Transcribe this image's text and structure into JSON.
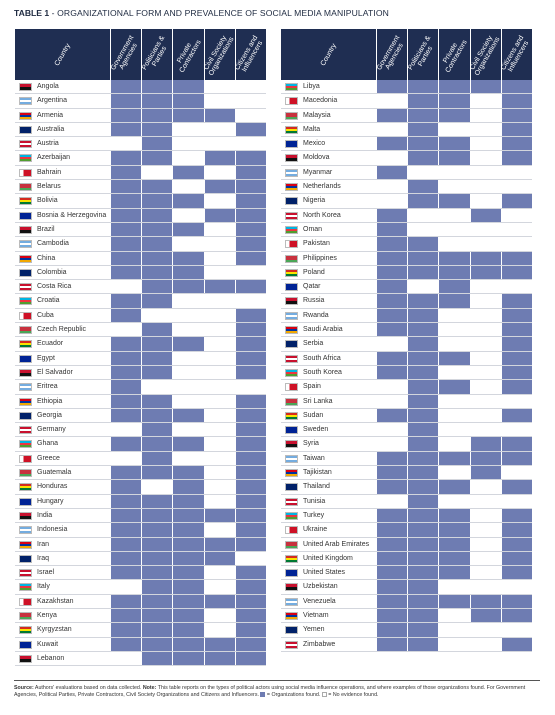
{
  "title": {
    "label": "TABLE 1",
    "separator": " - ",
    "text": "ORGANIZATIONAL FORM AND PREVALENCE OF SOCIAL MEDIA MANIPULATION"
  },
  "columns": {
    "country": "Country",
    "actors": [
      [
        "Government",
        "Agencies"
      ],
      [
        "Politicians &",
        "Parties"
      ],
      [
        "Private",
        "Contractors"
      ],
      [
        "Civil Society",
        "Organizations"
      ],
      [
        "Citizens and",
        "Influencers"
      ]
    ]
  },
  "colors": {
    "found": "#6e7cb2",
    "header": "#1f2e52"
  },
  "left_rows": [
    {
      "country": "Angola",
      "flags": [
        1,
        1,
        1,
        0,
        0
      ],
      "flag_icon": "angola-flag-icon"
    },
    {
      "country": "Argentina",
      "flags": [
        1,
        1,
        1,
        0,
        0
      ],
      "flag_icon": "argentina-flag-icon"
    },
    {
      "country": "Armenia",
      "flags": [
        1,
        1,
        1,
        1,
        0
      ],
      "flag_icon": "armenia-flag-icon"
    },
    {
      "country": "Australia",
      "flags": [
        1,
        1,
        0,
        0,
        1
      ],
      "flag_icon": "australia-flag-icon"
    },
    {
      "country": "Austria",
      "flags": [
        0,
        1,
        0,
        0,
        0
      ],
      "flag_icon": "austria-flag-icon"
    },
    {
      "country": "Azerbaijan",
      "flags": [
        1,
        1,
        0,
        1,
        1
      ],
      "flag_icon": "azerbaijan-flag-icon"
    },
    {
      "country": "Bahrain",
      "flags": [
        1,
        0,
        1,
        0,
        1
      ],
      "flag_icon": "bahrain-flag-icon"
    },
    {
      "country": "Belarus",
      "flags": [
        1,
        1,
        0,
        1,
        1
      ],
      "flag_icon": "belarus-flag-icon"
    },
    {
      "country": "Bolivia",
      "flags": [
        1,
        1,
        1,
        0,
        1
      ],
      "flag_icon": "bolivia-flag-icon"
    },
    {
      "country": "Bosnia & Herzegovina",
      "flags": [
        1,
        1,
        0,
        1,
        1
      ],
      "flag_icon": "bosnia-flag-icon"
    },
    {
      "country": "Brazil",
      "flags": [
        1,
        1,
        1,
        0,
        1
      ],
      "flag_icon": "brazil-flag-icon"
    },
    {
      "country": "Cambodia",
      "flags": [
        1,
        1,
        0,
        0,
        1
      ],
      "flag_icon": "cambodia-flag-icon"
    },
    {
      "country": "China",
      "flags": [
        1,
        1,
        1,
        0,
        1
      ],
      "flag_icon": "china-flag-icon"
    },
    {
      "country": "Colombia",
      "flags": [
        1,
        1,
        1,
        0,
        0
      ],
      "flag_icon": "colombia-flag-icon"
    },
    {
      "country": "Costa Rica",
      "flags": [
        0,
        1,
        1,
        1,
        1
      ],
      "flag_icon": "costa-rica-flag-icon"
    },
    {
      "country": "Croatia",
      "flags": [
        1,
        1,
        0,
        0,
        0
      ],
      "flag_icon": "croatia-flag-icon"
    },
    {
      "country": "Cuba",
      "flags": [
        1,
        0,
        0,
        0,
        1
      ],
      "flag_icon": "cuba-flag-icon"
    },
    {
      "country": "Czech Republic",
      "flags": [
        0,
        1,
        0,
        0,
        1
      ],
      "flag_icon": "czech-flag-icon"
    },
    {
      "country": "Ecuador",
      "flags": [
        1,
        1,
        1,
        0,
        1
      ],
      "flag_icon": "ecuador-flag-icon"
    },
    {
      "country": "Egypt",
      "flags": [
        1,
        1,
        0,
        0,
        1
      ],
      "flag_icon": "egypt-flag-icon"
    },
    {
      "country": "El Salvador",
      "flags": [
        1,
        1,
        0,
        0,
        1
      ],
      "flag_icon": "el-salvador-flag-icon"
    },
    {
      "country": "Eritrea",
      "flags": [
        1,
        0,
        0,
        0,
        0
      ],
      "flag_icon": "eritrea-flag-icon"
    },
    {
      "country": "Ethiopia",
      "flags": [
        1,
        1,
        0,
        0,
        1
      ],
      "flag_icon": "ethiopia-flag-icon"
    },
    {
      "country": "Georgia",
      "flags": [
        1,
        1,
        1,
        0,
        1
      ],
      "flag_icon": "georgia-flag-icon"
    },
    {
      "country": "Germany",
      "flags": [
        0,
        1,
        0,
        0,
        1
      ],
      "flag_icon": "germany-flag-icon"
    },
    {
      "country": "Ghana",
      "flags": [
        1,
        1,
        1,
        0,
        1
      ],
      "flag_icon": "ghana-flag-icon"
    },
    {
      "country": "Greece",
      "flags": [
        0,
        1,
        0,
        0,
        1
      ],
      "flag_icon": "greece-flag-icon"
    },
    {
      "country": "Guatemala",
      "flags": [
        1,
        1,
        1,
        0,
        1
      ],
      "flag_icon": "guatemala-flag-icon"
    },
    {
      "country": "Honduras",
      "flags": [
        1,
        0,
        1,
        0,
        1
      ],
      "flag_icon": "honduras-flag-icon"
    },
    {
      "country": "Hungary",
      "flags": [
        1,
        1,
        1,
        0,
        1
      ],
      "flag_icon": "hungary-flag-icon"
    },
    {
      "country": "India",
      "flags": [
        1,
        1,
        1,
        1,
        1
      ],
      "flag_icon": "india-flag-icon"
    },
    {
      "country": "Indonesia",
      "flags": [
        1,
        1,
        1,
        0,
        1
      ],
      "flag_icon": "indonesia-flag-icon"
    },
    {
      "country": "Iran",
      "flags": [
        1,
        1,
        1,
        1,
        1
      ],
      "flag_icon": "iran-flag-icon"
    },
    {
      "country": "Iraq",
      "flags": [
        1,
        1,
        1,
        1,
        0
      ],
      "flag_icon": "iraq-flag-icon"
    },
    {
      "country": "Israel",
      "flags": [
        1,
        1,
        1,
        0,
        1
      ],
      "flag_icon": "israel-flag-icon"
    },
    {
      "country": "Italy",
      "flags": [
        0,
        1,
        1,
        0,
        1
      ],
      "flag_icon": "italy-flag-icon"
    },
    {
      "country": "Kazakhstan",
      "flags": [
        1,
        1,
        1,
        1,
        1
      ],
      "flag_icon": "kazakhstan-flag-icon"
    },
    {
      "country": "Kenya",
      "flags": [
        1,
        1,
        1,
        0,
        1
      ],
      "flag_icon": "kenya-flag-icon"
    },
    {
      "country": "Kyrgyzstan",
      "flags": [
        1,
        1,
        1,
        0,
        1
      ],
      "flag_icon": "kyrgyzstan-flag-icon"
    },
    {
      "country": "Kuwait",
      "flags": [
        1,
        1,
        1,
        1,
        1
      ],
      "flag_icon": "kuwait-flag-icon"
    },
    {
      "country": "Lebanon",
      "flags": [
        0,
        1,
        1,
        1,
        1
      ],
      "flag_icon": "lebanon-flag-icon"
    }
  ],
  "right_rows": [
    {
      "country": "Libya",
      "flags": [
        1,
        1,
        1,
        1,
        1
      ],
      "flag_icon": "libya-flag-icon"
    },
    {
      "country": "Macedonia",
      "flags": [
        0,
        1,
        1,
        0,
        1
      ],
      "flag_icon": "macedonia-flag-icon"
    },
    {
      "country": "Malaysia",
      "flags": [
        1,
        1,
        1,
        0,
        1
      ],
      "flag_icon": "malaysia-flag-icon"
    },
    {
      "country": "Malta",
      "flags": [
        0,
        1,
        0,
        0,
        1
      ],
      "flag_icon": "malta-flag-icon"
    },
    {
      "country": "Mexico",
      "flags": [
        1,
        1,
        1,
        0,
        1
      ],
      "flag_icon": "mexico-flag-icon"
    },
    {
      "country": "Moldova",
      "flags": [
        0,
        1,
        1,
        0,
        1
      ],
      "flag_icon": "moldova-flag-icon"
    },
    {
      "country": "Myanmar",
      "flags": [
        1,
        0,
        0,
        0,
        0
      ],
      "flag_icon": "myanmar-flag-icon"
    },
    {
      "country": "Netherlands",
      "flags": [
        0,
        1,
        0,
        0,
        0
      ],
      "flag_icon": "netherlands-flag-icon"
    },
    {
      "country": "Nigeria",
      "flags": [
        0,
        1,
        1,
        0,
        1
      ],
      "flag_icon": "nigeria-flag-icon"
    },
    {
      "country": "North Korea",
      "flags": [
        1,
        0,
        0,
        1,
        0
      ],
      "flag_icon": "north-korea-flag-icon"
    },
    {
      "country": "Oman",
      "flags": [
        1,
        0,
        0,
        0,
        0
      ],
      "flag_icon": "oman-flag-icon"
    },
    {
      "country": "Pakistan",
      "flags": [
        1,
        1,
        0,
        0,
        0
      ],
      "flag_icon": "pakistan-flag-icon"
    },
    {
      "country": "Philippines",
      "flags": [
        1,
        1,
        1,
        1,
        1
      ],
      "flag_icon": "philippines-flag-icon"
    },
    {
      "country": "Poland",
      "flags": [
        1,
        1,
        1,
        1,
        1
      ],
      "flag_icon": "poland-flag-icon"
    },
    {
      "country": "Qatar",
      "flags": [
        1,
        0,
        1,
        0,
        0
      ],
      "flag_icon": "qatar-flag-icon"
    },
    {
      "country": "Russia",
      "flags": [
        1,
        1,
        1,
        0,
        1
      ],
      "flag_icon": "russia-flag-icon"
    },
    {
      "country": "Rwanda",
      "flags": [
        1,
        1,
        0,
        0,
        1
      ],
      "flag_icon": "rwanda-flag-icon"
    },
    {
      "country": "Saudi Arabia",
      "flags": [
        1,
        1,
        0,
        0,
        1
      ],
      "flag_icon": "saudi-arabia-flag-icon"
    },
    {
      "country": "Serbia",
      "flags": [
        0,
        1,
        0,
        0,
        1
      ],
      "flag_icon": "serbia-flag-icon"
    },
    {
      "country": "South Africa",
      "flags": [
        1,
        1,
        1,
        0,
        1
      ],
      "flag_icon": "south-africa-flag-icon"
    },
    {
      "country": "South Korea",
      "flags": [
        1,
        1,
        0,
        0,
        1
      ],
      "flag_icon": "south-korea-flag-icon"
    },
    {
      "country": "Spain",
      "flags": [
        0,
        1,
        1,
        0,
        1
      ],
      "flag_icon": "spain-flag-icon"
    },
    {
      "country": "Sri Lanka",
      "flags": [
        0,
        1,
        0,
        0,
        0
      ],
      "flag_icon": "sri-lanka-flag-icon"
    },
    {
      "country": "Sudan",
      "flags": [
        1,
        1,
        0,
        0,
        1
      ],
      "flag_icon": "sudan-flag-icon"
    },
    {
      "country": "Sweden",
      "flags": [
        0,
        1,
        0,
        0,
        0
      ],
      "flag_icon": "sweden-flag-icon"
    },
    {
      "country": "Syria",
      "flags": [
        0,
        1,
        0,
        1,
        1
      ],
      "flag_icon": "syria-flag-icon"
    },
    {
      "country": "Taiwan",
      "flags": [
        1,
        1,
        1,
        1,
        1
      ],
      "flag_icon": "taiwan-flag-icon"
    },
    {
      "country": "Tajikistan",
      "flags": [
        1,
        1,
        0,
        1,
        0
      ],
      "flag_icon": "tajikistan-flag-icon"
    },
    {
      "country": "Thailand",
      "flags": [
        1,
        1,
        1,
        0,
        1
      ],
      "flag_icon": "thailand-flag-icon"
    },
    {
      "country": "Tunisia",
      "flags": [
        0,
        1,
        0,
        0,
        0
      ],
      "flag_icon": "tunisia-flag-icon"
    },
    {
      "country": "Turkey",
      "flags": [
        1,
        1,
        1,
        0,
        1
      ],
      "flag_icon": "turkey-flag-icon"
    },
    {
      "country": "Ukraine",
      "flags": [
        1,
        1,
        1,
        0,
        1
      ],
      "flag_icon": "ukraine-flag-icon"
    },
    {
      "country": "United Arab Emirates",
      "flags": [
        1,
        1,
        1,
        0,
        1
      ],
      "flag_icon": "uae-flag-icon"
    },
    {
      "country": "United Kingdom",
      "flags": [
        1,
        1,
        1,
        0,
        1
      ],
      "flag_icon": "uk-flag-icon"
    },
    {
      "country": "United States",
      "flags": [
        1,
        1,
        1,
        0,
        1
      ],
      "flag_icon": "usa-flag-icon"
    },
    {
      "country": "Uzbekistan",
      "flags": [
        1,
        1,
        0,
        0,
        0
      ],
      "flag_icon": "uzbekistan-flag-icon"
    },
    {
      "country": "Venezuela",
      "flags": [
        1,
        1,
        1,
        1,
        1
      ],
      "flag_icon": "venezuela-flag-icon"
    },
    {
      "country": "Vietnam",
      "flags": [
        1,
        1,
        0,
        1,
        1
      ],
      "flag_icon": "vietnam-flag-icon"
    },
    {
      "country": "Yemen",
      "flags": [
        1,
        1,
        0,
        0,
        0
      ],
      "flag_icon": "yemen-flag-icon"
    },
    {
      "country": "Zimbabwe",
      "flags": [
        1,
        1,
        0,
        0,
        1
      ],
      "flag_icon": "zimbabwe-flag-icon"
    }
  ],
  "footer": {
    "source_label": "Source:",
    "source_text": " Authors' evaluations based on data collected. ",
    "note_label": "Note:",
    "note_text": " This table reports on the types of political actors using social media influence operations, and where examples of those organizations found. For Government Agencies, Political Parties, Private Contractors, Civil Society Organizations and Citizens and Influencers. ",
    "found_text": " = Organizations found. ",
    "none_text": " = No evidence found."
  }
}
